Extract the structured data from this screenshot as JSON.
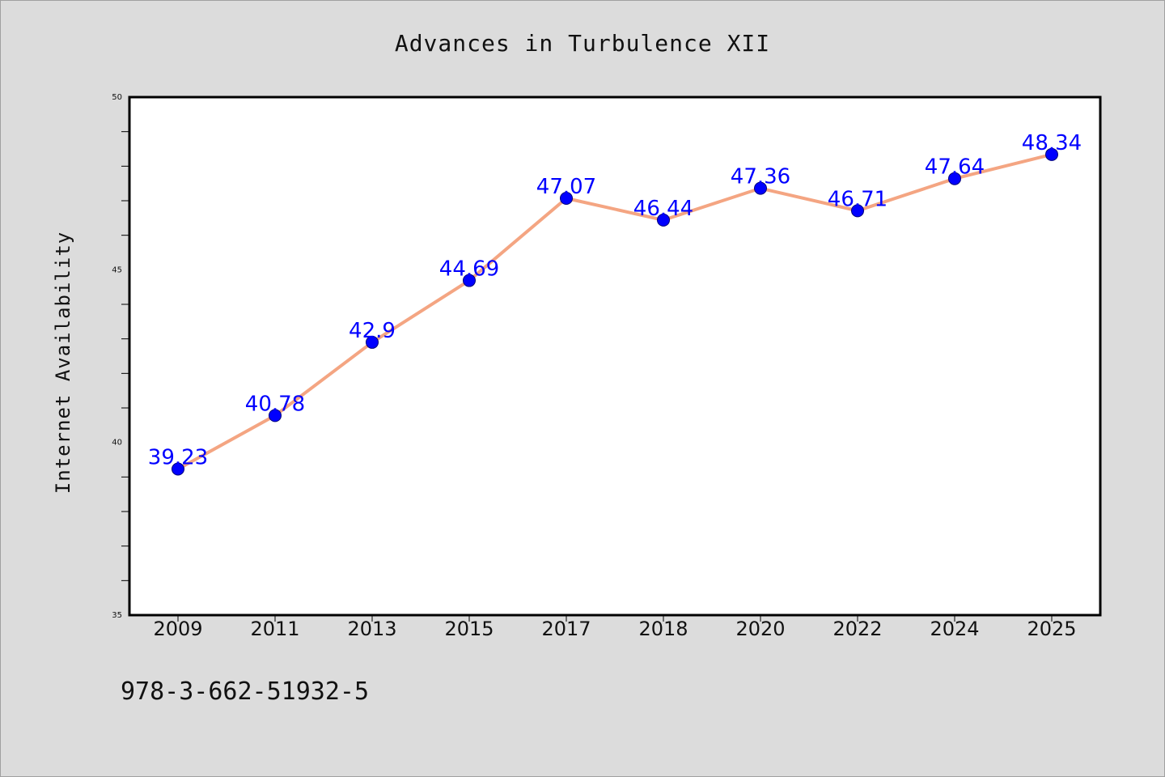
{
  "chart_data": {
    "type": "line",
    "title": "Advances in Turbulence XII",
    "xlabel": "",
    "ylabel": "Internet Availability",
    "categories": [
      "2009",
      "2011",
      "2013",
      "2015",
      "2017",
      "2018",
      "2020",
      "2022",
      "2024",
      "2025"
    ],
    "series": [
      {
        "values": [
          39.23,
          40.78,
          42.9,
          44.69,
          47.07,
          46.44,
          47.36,
          46.71,
          47.64,
          48.34
        ],
        "data_labels": [
          "39.23",
          "40.78",
          "42.9",
          "44.69",
          "47.07",
          "46.44",
          "47.36",
          "46.71",
          "47.64",
          "48.34"
        ],
        "line_color": "#f4a582",
        "marker_color": "#0000ff"
      }
    ],
    "ylim": [
      35,
      50
    ],
    "yticks": [
      "35",
      "40",
      "45",
      "50"
    ],
    "grid": false,
    "legend": "none"
  },
  "footer": {
    "text": "978-3-662-51932-5"
  },
  "colors": {
    "background": "#dcdcdc",
    "plot_background": "#ffffff",
    "line": "#f4a582",
    "marker": "#0000ff",
    "label": "#0000ff"
  }
}
